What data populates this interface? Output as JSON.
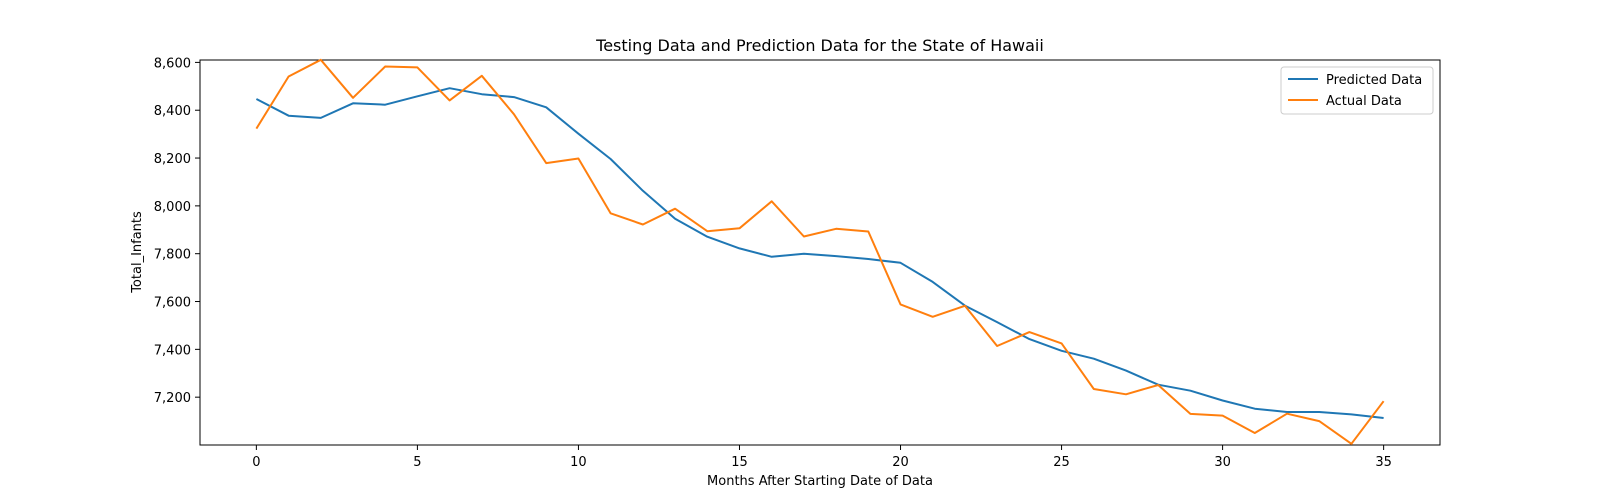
{
  "chart_data": {
    "type": "line",
    "title": "Testing Data and Prediction Data for the State of Hawaii",
    "xlabel": "Months After Starting Date of Data",
    "ylabel": "Total_Infants",
    "xlim": [
      -1.75,
      36.75
    ],
    "ylim": [
      7000,
      8610
    ],
    "x_ticks": [
      0,
      5,
      10,
      15,
      20,
      25,
      30,
      35
    ],
    "y_ticks": [
      7200,
      7400,
      7600,
      7800,
      8000,
      8200,
      8400,
      8600
    ],
    "y_tick_labels": [
      "7,200",
      "7,400",
      "7,600",
      "7,800",
      "8,000",
      "8,200",
      "8,400",
      "8,600"
    ],
    "grid": false,
    "legend_position": "top-right",
    "x": [
      0,
      1,
      2,
      3,
      4,
      5,
      6,
      7,
      8,
      9,
      10,
      11,
      12,
      13,
      14,
      15,
      16,
      17,
      18,
      19,
      20,
      21,
      22,
      23,
      24,
      25,
      26,
      27,
      28,
      29,
      30,
      31,
      32,
      33,
      34,
      35
    ],
    "series": [
      {
        "name": "Predicted Data",
        "color": "#1f77b4",
        "values": [
          8447,
          8377,
          8368,
          8429,
          8423,
          8458,
          8492,
          8467,
          8455,
          8412,
          8302,
          8196,
          8063,
          7946,
          7871,
          7822,
          7787,
          7800,
          7790,
          7778,
          7762,
          7682,
          7583,
          7514,
          7443,
          7394,
          7361,
          7311,
          7252,
          7227,
          7186,
          7152,
          7138,
          7138,
          7128,
          7113
        ]
      },
      {
        "name": "Actual Data",
        "color": "#ff7f0e",
        "values": [
          8323,
          8541,
          8611,
          8452,
          8583,
          8579,
          8441,
          8544,
          8383,
          8179,
          8198,
          7969,
          7922,
          7988,
          7894,
          7906,
          8019,
          7872,
          7904,
          7893,
          7588,
          7536,
          7582,
          7414,
          7472,
          7425,
          7234,
          7212,
          7251,
          7130,
          7123,
          7050,
          7131,
          7100,
          7005,
          7183
        ]
      }
    ]
  }
}
